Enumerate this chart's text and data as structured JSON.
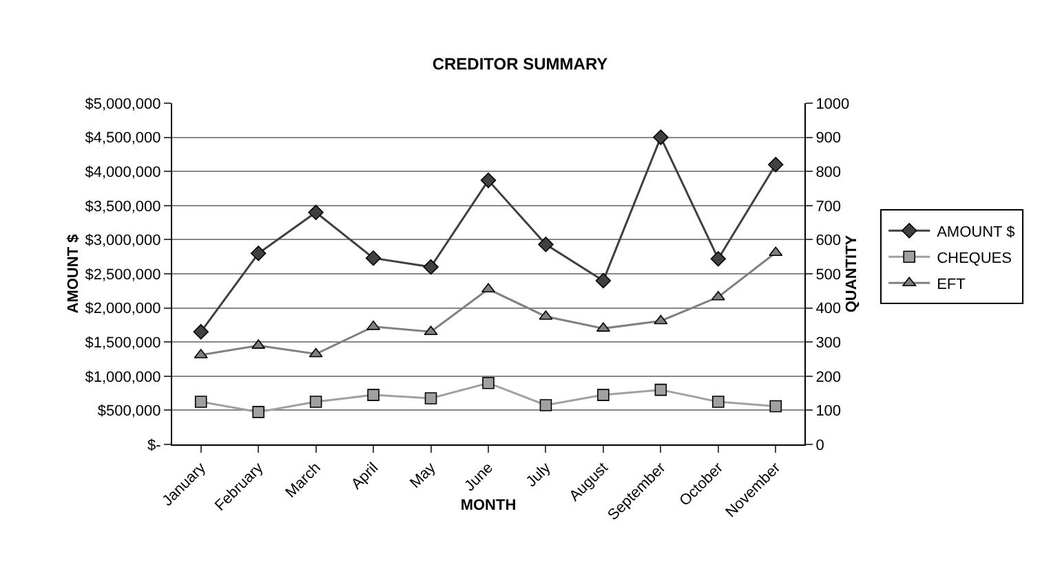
{
  "chart_data": {
    "type": "line",
    "title": "CREDITOR SUMMARY",
    "xlabel": "MONTH",
    "ylabel": "AMOUNT $",
    "y2label": "QUANTITY",
    "categories": [
      "January",
      "February",
      "March",
      "April",
      "May",
      "June",
      "July",
      "August",
      "September",
      "October",
      "November"
    ],
    "series": [
      {
        "name": "AMOUNT $",
        "color": "#404040",
        "marker": "diamond",
        "values": [
          1650000,
          2800000,
          3400000,
          2730000,
          2600000,
          3870000,
          2930000,
          2400000,
          4500000,
          2720000,
          4100000
        ]
      },
      {
        "name": "CHEQUES",
        "color": "#a0a0a0",
        "marker": "square",
        "axis": "y2",
        "values": [
          125,
          95,
          125,
          145,
          135,
          180,
          115,
          145,
          160,
          125,
          112
        ]
      },
      {
        "name": "EFT",
        "color": "#808080",
        "marker": "triangle",
        "axis": "y2",
        "values": [
          262,
          290,
          265,
          345,
          330,
          455,
          375,
          340,
          362,
          432,
          562
        ]
      }
    ],
    "ylim": [
      0,
      5000000
    ],
    "yticks": [
      {
        "value": 0,
        "label": "$-"
      },
      {
        "value": 500000,
        "label": "$500,000"
      },
      {
        "value": 1000000,
        "label": "$1,000,000"
      },
      {
        "value": 1500000,
        "label": "$1,500,000"
      },
      {
        "value": 2000000,
        "label": "$2,000,000"
      },
      {
        "value": 2500000,
        "label": "$2,500,000"
      },
      {
        "value": 3000000,
        "label": "$3,000,000"
      },
      {
        "value": 3500000,
        "label": "$3,500,000"
      },
      {
        "value": 4000000,
        "label": "$4,000,000"
      },
      {
        "value": 4500000,
        "label": "$4,500,000"
      },
      {
        "value": 5000000,
        "label": "$5,000,000"
      }
    ],
    "y2lim": [
      0,
      1000
    ],
    "y2ticks": [
      0,
      100,
      200,
      300,
      400,
      500,
      600,
      700,
      800,
      900,
      1000
    ],
    "grid": "y",
    "legend": "right",
    "line_style": "solid"
  }
}
